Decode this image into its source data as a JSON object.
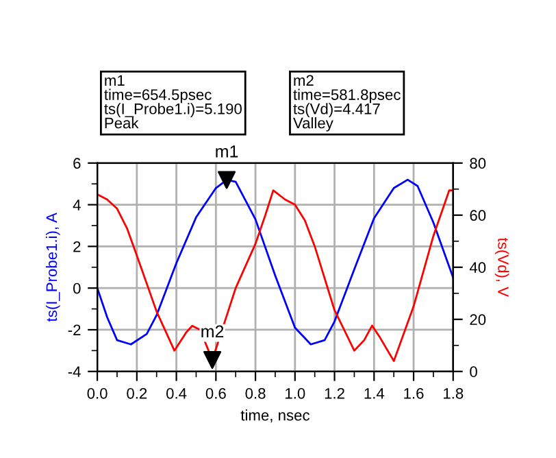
{
  "chart_data": {
    "type": "line",
    "xlabel": "time, nsec",
    "ylabel": "ts(I_Probe1.i), A",
    "y2label": "ts(Vd), V",
    "series": [
      {
        "color": "#0000ff",
        "x": [
          0,
          0.05,
          0.1,
          0.17,
          0.25,
          0.3,
          0.4,
          0.5,
          0.6,
          0.6545,
          0.7,
          0.8,
          0.9,
          1.0,
          1.08,
          1.15,
          1.2,
          1.3,
          1.4,
          1.5,
          1.57,
          1.62,
          1.7,
          1.8
        ],
        "values": [
          0,
          -1.4,
          -2.5,
          -2.7,
          -2.2,
          -1.3,
          1.2,
          3.4,
          4.8,
          5.19,
          5.1,
          3.3,
          0.6,
          -1.9,
          -2.7,
          -2.5,
          -1.6,
          0.9,
          3.35,
          4.8,
          5.2,
          4.9,
          3.15,
          0.5
        ]
      },
      {
        "color": "#ff0000",
        "axis": "y2",
        "x": [
          0,
          0.05,
          0.1,
          0.15,
          0.2,
          0.3,
          0.39,
          0.45,
          0.48,
          0.52,
          0.5818,
          0.7,
          0.8,
          0.85,
          0.89,
          0.95,
          1.0,
          1.05,
          1.1,
          1.2,
          1.3,
          1.35,
          1.39,
          1.43,
          1.5,
          1.6,
          1.7,
          1.78,
          1.8
        ],
        "values": [
          68,
          66,
          62.5,
          55,
          44.5,
          23,
          8,
          15,
          17.5,
          16,
          4.4,
          32,
          49,
          60,
          69.5,
          66,
          64,
          58,
          48,
          23.5,
          8,
          12,
          17.6,
          13,
          4,
          25,
          52,
          69.5,
          69.5
        ]
      },
      {
        "type": "scatter",
        "name": "m1",
        "color": "#000000",
        "marker": "triangle",
        "x": [
          0.6545
        ],
        "values": [
          5.19
        ]
      },
      {
        "type": "scatter",
        "name": "m2",
        "color": "#000000",
        "marker": "triangle",
        "axis": "y2",
        "x": [
          0.5818
        ],
        "values": [
          4.417
        ]
      }
    ],
    "xlim": [
      0,
      1.8
    ],
    "xticks": [
      {
        "value": 0,
        "label": "0.0"
      },
      {
        "value": 0.2,
        "label": "0.2"
      },
      {
        "value": 0.4,
        "label": "0.4"
      },
      {
        "value": 0.6,
        "label": "0.6"
      },
      {
        "value": 0.8,
        "label": "0.8"
      },
      {
        "value": 1.0,
        "label": "1.0"
      },
      {
        "value": 1.2,
        "label": "1.2"
      },
      {
        "value": 1.4,
        "label": "1.4"
      },
      {
        "value": 1.6,
        "label": "1.6"
      },
      {
        "value": 1.8,
        "label": "1.8"
      }
    ],
    "ylim": [
      -4,
      6
    ],
    "yticks": [
      -4,
      -2,
      0,
      2,
      4,
      6
    ],
    "y2lim": [
      0,
      80
    ],
    "y2ticks": [
      0,
      20,
      40,
      60,
      80
    ],
    "grid": true,
    "legend": false,
    "annotations": [
      "m1\ntime=654.5psec\nts(I_Probe1.i)=5.190\nPeak",
      "m2\ntime=581.8psec\nts(Vd)=4.417\nValley"
    ]
  }
}
